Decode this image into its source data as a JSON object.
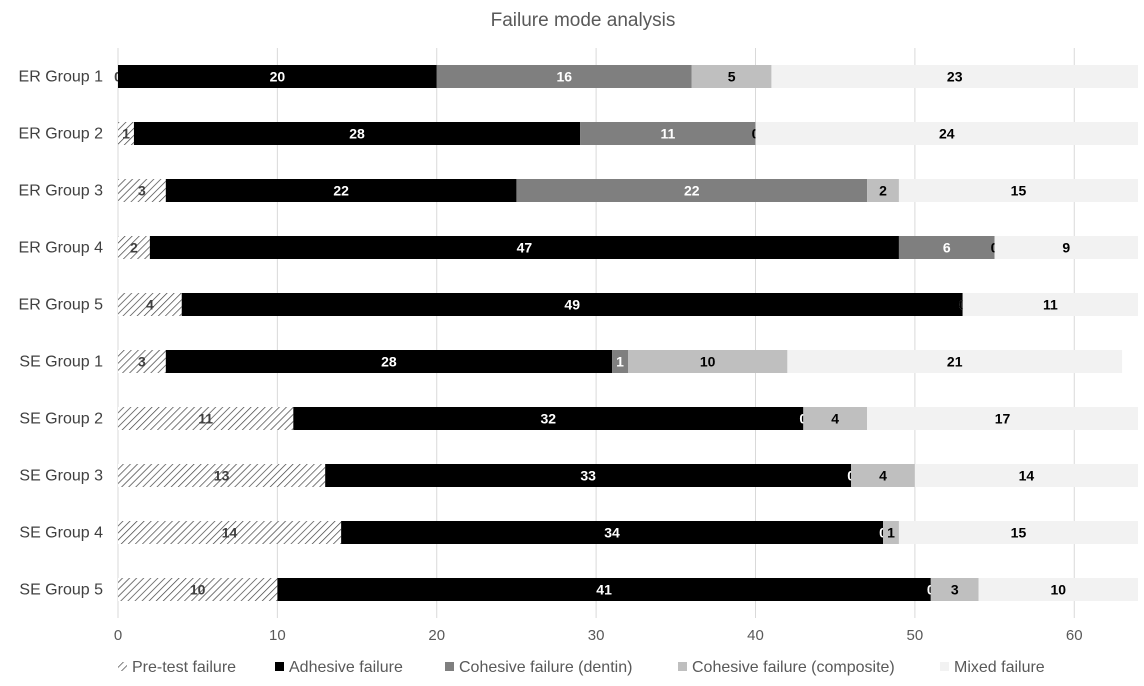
{
  "chart_data": {
    "type": "bar",
    "orientation": "horizontal",
    "stacked": true,
    "title": "Failure mode analysis",
    "xlabel": "",
    "ylabel": "",
    "xlim": [
      0,
      64
    ],
    "xticks": [
      0,
      10,
      20,
      30,
      40,
      50,
      60
    ],
    "grid": true,
    "legend_position": "bottom",
    "categories": [
      "ER Group 1",
      "ER Group 2",
      "ER Group 3",
      "ER Group 4",
      "ER Group 5",
      "SE Group 1",
      "SE Group 2",
      "SE Group 3",
      "SE Group 4",
      "SE Group 5"
    ],
    "series": [
      {
        "name": "Pre-test failure",
        "pattern": "diagonal-hatch",
        "color": "#404040",
        "label_color": "#404040",
        "values": [
          0,
          1,
          3,
          2,
          4,
          3,
          11,
          13,
          14,
          10
        ]
      },
      {
        "name": "Adhesive failure",
        "color": "#000000",
        "label_color": "#ffffff",
        "values": [
          20,
          28,
          22,
          47,
          49,
          28,
          32,
          33,
          34,
          41
        ]
      },
      {
        "name": "Cohesive failure (dentin)",
        "color": "#7f7f7f",
        "label_color": "#ffffff",
        "values": [
          16,
          11,
          22,
          6,
          0,
          1,
          0,
          0,
          0,
          0
        ]
      },
      {
        "name": "Cohesive failure (composite)",
        "color": "#bfbfbf",
        "label_color": "#000000",
        "values": [
          5,
          0,
          2,
          0,
          0,
          10,
          4,
          4,
          1,
          3
        ]
      },
      {
        "name": "Mixed failure",
        "color": "#f2f2f2",
        "label_color": "#000000",
        "values": [
          23,
          24,
          15,
          9,
          11,
          21,
          17,
          14,
          15,
          10
        ]
      }
    ]
  }
}
